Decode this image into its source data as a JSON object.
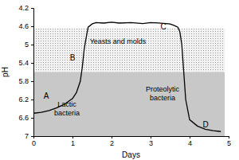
{
  "chart_data": {
    "type": "line",
    "x_label": "Days",
    "y_label": "pH",
    "x": [
      0,
      0.2,
      0.4,
      0.6,
      0.8,
      1.0,
      1.1,
      1.2,
      1.25,
      1.3,
      1.35,
      1.4,
      1.5,
      1.6,
      1.8,
      2.0,
      2.2,
      2.5,
      2.8,
      3.0,
      3.2,
      3.4,
      3.5,
      3.6,
      3.7,
      3.75,
      3.8,
      3.85,
      3.9,
      4.0,
      4.2,
      4.4,
      4.6,
      4.8
    ],
    "series": [
      {
        "color": "#000000",
        "values": [
          6.5,
          6.48,
          6.44,
          6.38,
          6.3,
          6.18,
          6.05,
          5.8,
          5.5,
          5.1,
          4.85,
          4.62,
          4.55,
          4.52,
          4.53,
          4.51,
          4.53,
          4.52,
          4.54,
          4.52,
          4.53,
          4.54,
          4.55,
          4.58,
          4.62,
          4.72,
          5.0,
          5.6,
          6.2,
          6.64,
          6.78,
          6.85,
          6.88,
          6.9
        ]
      }
    ],
    "bands": [
      {
        "x": [
          0,
          4.9
        ],
        "y": [
          4.65,
          5.6
        ],
        "color": "#e4e4e4"
      },
      {
        "x": [
          0,
          4.9
        ],
        "y": [
          5.6,
          7
        ],
        "color": "#c8c8c8"
      }
    ],
    "annotations": [
      {
        "text": "A"
      },
      {
        "text": "B"
      },
      {
        "text": "C"
      },
      {
        "text": "D"
      },
      {
        "text": "Lactic bacteria"
      },
      {
        "text": "Yeasts and molds"
      },
      {
        "text": "Proteolytic bacteria"
      }
    ],
    "xlim": [
      0,
      5
    ],
    "xticks": [
      0,
      1,
      2,
      3,
      4,
      5
    ],
    "ylim": [
      4.2,
      7
    ],
    "yticks": [
      4.2,
      4.6,
      5,
      5.4,
      5.8,
      6.2,
      6.6,
      7
    ],
    "grid": false
  }
}
